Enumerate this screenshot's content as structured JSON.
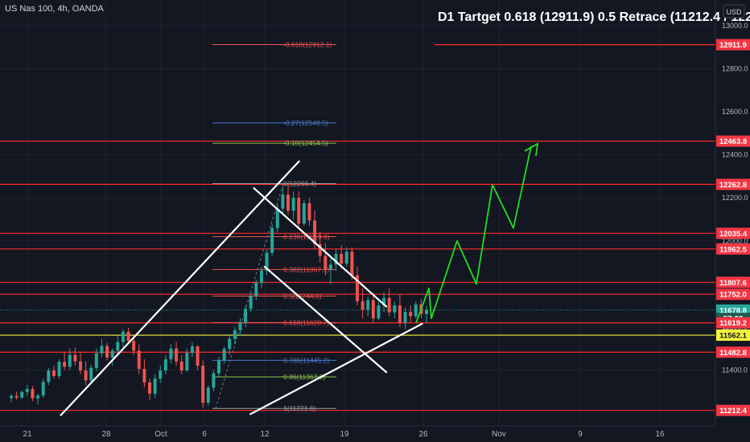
{
  "symbol_line": "US Nas 100, 4h, OANDA",
  "headline": "D1 Tartget 0.618 (12911.9) 0.5 Retrace (11212.4 / 12262.8",
  "currency_button": "USD",
  "colors": {
    "background": "#131722",
    "up_candle": "#26a69a",
    "down_candle": "#ef5350",
    "level_line": "#ff2a2a",
    "yellow_line": "#f5f53c",
    "projection": "#22dd22",
    "trendline": "#ffffff",
    "price_tag": "#f23645",
    "last_price_tag": "#26a69a"
  },
  "chart_data": {
    "type": "candlestick",
    "y_ticks": [
      "13000.0",
      "12800.0",
      "12600.0",
      "12400.0",
      "12200.0",
      "12000.0",
      "11800.0",
      "11600.0",
      "11400.0",
      "11200.0"
    ],
    "x_ticks": [
      "21",
      "28",
      "Oct",
      "6",
      "12",
      "19",
      "26",
      "Nov",
      "9",
      "16"
    ],
    "ylim": [
      11140,
      13080
    ],
    "price_tags": [
      {
        "label": "12911.9",
        "price": 12911.9,
        "kind": "level"
      },
      {
        "label": "12463.8",
        "price": 12463.8,
        "kind": "level"
      },
      {
        "label": "12262.8",
        "price": 12262.8,
        "kind": "level"
      },
      {
        "label": "12035.4",
        "price": 12035.4,
        "kind": "level"
      },
      {
        "label": "11962.5",
        "price": 11962.5,
        "kind": "level"
      },
      {
        "label": "11807.6",
        "price": 11807.6,
        "kind": "level"
      },
      {
        "label": "11752.0",
        "price": 11752.0,
        "kind": "level"
      },
      {
        "label": "11678.8",
        "price": 11678.8,
        "kind": "last"
      },
      {
        "label": "57:23",
        "price": 11640,
        "kind": "timer"
      },
      {
        "label": "11619.2",
        "price": 11619.2,
        "kind": "level"
      },
      {
        "label": "11562.1",
        "price": 11562.1,
        "kind": "yellow"
      },
      {
        "label": "11482.8",
        "price": 11482.8,
        "kind": "level"
      },
      {
        "label": "11212.4",
        "price": 11212.4,
        "kind": "level"
      }
    ],
    "fib_labels": [
      {
        "text": "-0.618(12912.1)",
        "price": 12912.1,
        "color": "#ef5350"
      },
      {
        "text": "-0.27(12548.5)",
        "price": 12548.5,
        "color": "#4a78c8"
      },
      {
        "text": "-0.18(12454.5)",
        "price": 12454.5,
        "color": "#8bc34a"
      },
      {
        "text": "0(12266.4)",
        "price": 12266.4,
        "color": "#9e9e9e"
      },
      {
        "text": "0.236(12019.8)",
        "price": 12019.8,
        "color": "#ef5350"
      },
      {
        "text": "0.382(11867.1)",
        "price": 11867.1,
        "color": "#ef5350"
      },
      {
        "text": "0.5(11744.0)",
        "price": 11744.0,
        "color": "#ef5350"
      },
      {
        "text": "0.618(11620.7)",
        "price": 11620.7,
        "color": "#ef5350"
      },
      {
        "text": "0.786(11445.2)",
        "price": 11445.2,
        "color": "#4a78c8"
      },
      {
        "text": "0.86(11367.9)",
        "price": 11367.9,
        "color": "#8bc34a"
      },
      {
        "text": "1(11221.6)",
        "price": 11221.6,
        "color": "#9e9e9e"
      }
    ],
    "candles": [
      [
        11270,
        11290,
        11250,
        11280
      ],
      [
        11280,
        11300,
        11262,
        11272
      ],
      [
        11272,
        11305,
        11265,
        11298
      ],
      [
        11298,
        11330,
        11280,
        11312
      ],
      [
        11312,
        11325,
        11255,
        11268
      ],
      [
        11268,
        11290,
        11240,
        11282
      ],
      [
        11282,
        11360,
        11270,
        11345
      ],
      [
        11345,
        11410,
        11330,
        11398
      ],
      [
        11398,
        11420,
        11360,
        11372
      ],
      [
        11372,
        11450,
        11360,
        11438
      ],
      [
        11438,
        11480,
        11400,
        11415
      ],
      [
        11415,
        11500,
        11400,
        11470
      ],
      [
        11470,
        11505,
        11420,
        11440
      ],
      [
        11440,
        11480,
        11380,
        11398
      ],
      [
        11398,
        11440,
        11330,
        11352
      ],
      [
        11352,
        11425,
        11340,
        11410
      ],
      [
        11410,
        11500,
        11395,
        11478
      ],
      [
        11478,
        11545,
        11460,
        11512
      ],
      [
        11512,
        11525,
        11445,
        11458
      ],
      [
        11458,
        11500,
        11420,
        11490
      ],
      [
        11490,
        11560,
        11470,
        11530
      ],
      [
        11530,
        11590,
        11505,
        11578
      ],
      [
        11578,
        11596,
        11520,
        11535
      ],
      [
        11535,
        11560,
        11470,
        11490
      ],
      [
        11490,
        11520,
        11380,
        11405
      ],
      [
        11405,
        11450,
        11320,
        11342
      ],
      [
        11342,
        11360,
        11260,
        11290
      ],
      [
        11290,
        11380,
        11270,
        11360
      ],
      [
        11360,
        11420,
        11340,
        11398
      ],
      [
        11398,
        11470,
        11380,
        11450
      ],
      [
        11450,
        11520,
        11430,
        11500
      ],
      [
        11500,
        11530,
        11420,
        11440
      ],
      [
        11440,
        11470,
        11380,
        11398
      ],
      [
        11398,
        11500,
        11390,
        11480
      ],
      [
        11480,
        11530,
        11460,
        11510
      ],
      [
        11510,
        11515,
        11400,
        11420
      ],
      [
        11420,
        11445,
        11225,
        11248
      ],
      [
        11248,
        11330,
        11235,
        11318
      ],
      [
        11318,
        11400,
        11300,
        11385
      ],
      [
        11385,
        11460,
        11370,
        11445
      ],
      [
        11445,
        11510,
        11430,
        11498
      ],
      [
        11498,
        11560,
        11470,
        11545
      ],
      [
        11545,
        11600,
        11520,
        11585
      ],
      [
        11585,
        11640,
        11560,
        11620
      ],
      [
        11620,
        11700,
        11600,
        11685
      ],
      [
        11685,
        11760,
        11670,
        11745
      ],
      [
        11745,
        11820,
        11725,
        11805
      ],
      [
        11805,
        11880,
        11780,
        11862
      ],
      [
        11862,
        11960,
        11840,
        11945
      ],
      [
        11945,
        12080,
        11930,
        12060
      ],
      [
        12060,
        12170,
        12040,
        12150
      ],
      [
        12150,
        12250,
        12120,
        12215
      ],
      [
        12215,
        12266,
        12120,
        12140
      ],
      [
        12140,
        12230,
        12100,
        12200
      ],
      [
        12200,
        12230,
        12060,
        12080
      ],
      [
        12080,
        12190,
        12070,
        12175
      ],
      [
        12175,
        12200,
        12070,
        12095
      ],
      [
        12095,
        12140,
        11960,
        11985
      ],
      [
        11985,
        12040,
        11900,
        11930
      ],
      [
        11930,
        11990,
        11840,
        11865
      ],
      [
        11865,
        11920,
        11800,
        11890
      ],
      [
        11890,
        11960,
        11860,
        11940
      ],
      [
        11940,
        11980,
        11870,
        11895
      ],
      [
        11895,
        11970,
        11880,
        11950
      ],
      [
        11950,
        11970,
        11820,
        11840
      ],
      [
        11840,
        11880,
        11700,
        11720
      ],
      [
        11720,
        11780,
        11640,
        11680
      ],
      [
        11680,
        11740,
        11650,
        11725
      ],
      [
        11725,
        11760,
        11620,
        11640
      ],
      [
        11640,
        11720,
        11630,
        11700
      ],
      [
        11700,
        11760,
        11670,
        11735
      ],
      [
        11735,
        11780,
        11650,
        11668
      ],
      [
        11668,
        11720,
        11640,
        11700
      ],
      [
        11700,
        11750,
        11600,
        11620
      ],
      [
        11620,
        11690,
        11590,
        11670
      ],
      [
        11670,
        11700,
        11620,
        11650
      ],
      [
        11650,
        11720,
        11640,
        11705
      ],
      [
        11705,
        11730,
        11640,
        11660
      ],
      [
        11660,
        11700,
        11620,
        11680
      ]
    ],
    "projection_prices": [
      11620,
      11780,
      11640,
      12000,
      11800,
      12260,
      12060,
      12440
    ],
    "trendlines": [
      {
        "p1": [
          0.085,
          11190
        ],
        "p2": [
          0.418,
          12370
        ]
      },
      {
        "p1": [
          0.355,
          12245
        ],
        "p2": [
          0.54,
          11695
        ]
      },
      {
        "p1": [
          0.37,
          11880
        ],
        "p2": [
          0.54,
          11390
        ]
      },
      {
        "p1": [
          0.35,
          11195
        ],
        "p2": [
          0.59,
          11615
        ]
      }
    ]
  }
}
